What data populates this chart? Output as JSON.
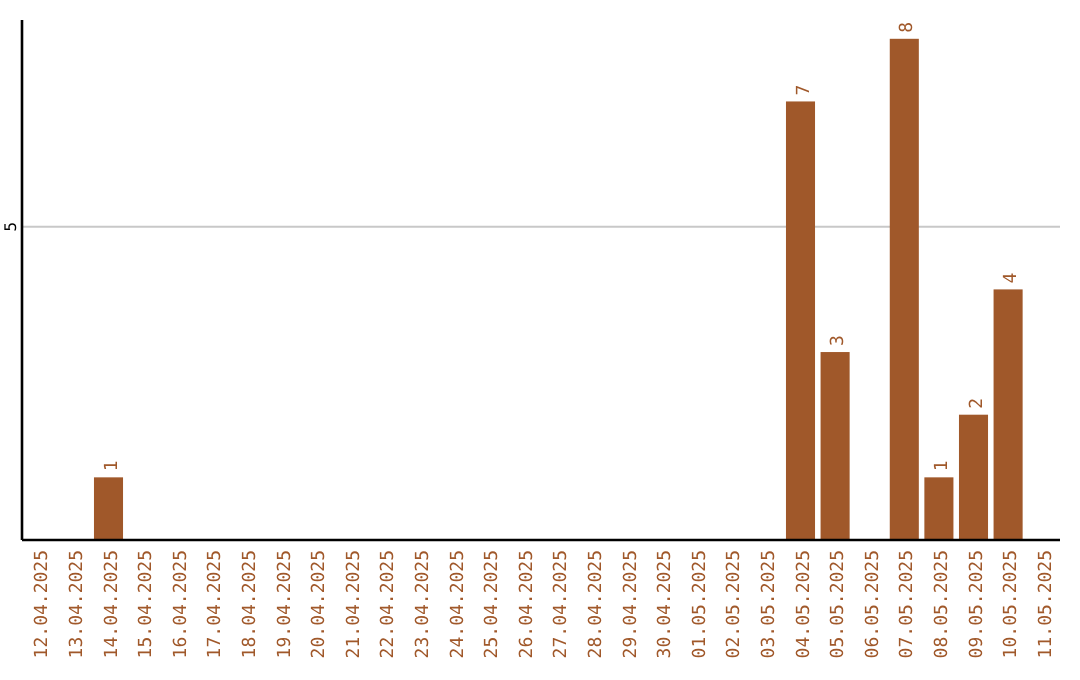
{
  "chart_data": {
    "type": "bar",
    "categories": [
      "12.04.2025",
      "13.04.2025",
      "14.04.2025",
      "15.04.2025",
      "16.04.2025",
      "17.04.2025",
      "18.04.2025",
      "19.04.2025",
      "20.04.2025",
      "21.04.2025",
      "22.04.2025",
      "23.04.2025",
      "24.04.2025",
      "25.04.2025",
      "26.04.2025",
      "27.04.2025",
      "28.04.2025",
      "29.04.2025",
      "30.04.2025",
      "01.05.2025",
      "02.05.2025",
      "03.05.2025",
      "04.05.2025",
      "05.05.2025",
      "06.05.2025",
      "07.05.2025",
      "08.05.2025",
      "09.05.2025",
      "10.05.2025",
      "11.05.2025"
    ],
    "values": [
      0,
      0,
      1,
      0,
      0,
      0,
      0,
      0,
      0,
      0,
      0,
      0,
      0,
      0,
      0,
      0,
      0,
      0,
      0,
      0,
      0,
      0,
      7,
      3,
      0,
      8,
      1,
      2,
      4,
      0
    ],
    "value_labels": [
      null,
      null,
      "1",
      null,
      null,
      null,
      null,
      null,
      null,
      null,
      null,
      null,
      null,
      null,
      null,
      null,
      null,
      null,
      null,
      null,
      null,
      null,
      "7",
      "3",
      null,
      "8",
      "1",
      "2",
      "4",
      null
    ],
    "color": "#a0582a",
    "ylim": [
      0,
      8.3
    ],
    "yticks": [
      5
    ],
    "grid": "y"
  }
}
